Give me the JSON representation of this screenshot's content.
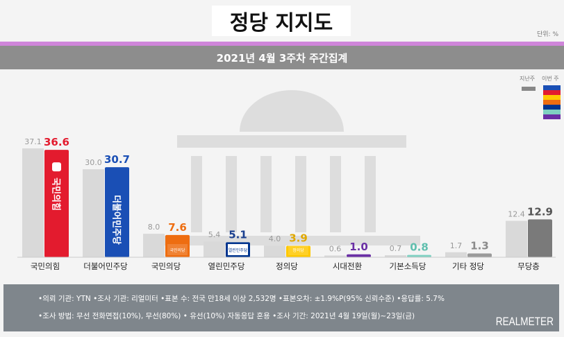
{
  "title": "정당 지지도",
  "unit": "단위: %",
  "subtitle": "2021년 4월 3주차 주간집계",
  "legend": {
    "prev": "지난주",
    "current": "이번 주",
    "current_colors": [
      "#1a4fb5",
      "#e31b2e",
      "#ffc800",
      "#ee6d10",
      "#00358f",
      "#7fd1c2",
      "#6a2fa5"
    ],
    "prev_color": "#888888"
  },
  "chart_data": {
    "type": "bar",
    "title": "정당 지지도",
    "subtitle": "2021년 4월 3주차 주간집계",
    "ylabel": "단위: %",
    "ylim": [
      0,
      40
    ],
    "categories": [
      "국민의힘",
      "더불어민주당",
      "국민의당",
      "열린민주당",
      "정의당",
      "시대전환",
      "기본소득당",
      "기타 정당",
      "무당층"
    ],
    "series": [
      {
        "name": "지난주",
        "values": [
          37.1,
          30.0,
          8.0,
          5.4,
          4.0,
          0.6,
          0.7,
          1.7,
          12.4
        ],
        "color": "#d9d9d9"
      },
      {
        "name": "이번 주",
        "values": [
          36.6,
          30.7,
          7.6,
          5.1,
          3.9,
          1.0,
          0.8,
          1.3,
          12.9
        ],
        "colors": [
          "#e31b2e",
          "#1a4fb5",
          "#ee6d10",
          "#00358f",
          "#ffc800",
          "#6a2fa5",
          "#7fd1c2",
          "#9a9a9a",
          "#7a7a7a"
        ],
        "label_colors": [
          "#e31b2e",
          "#1a4fb5",
          "#ee6d10",
          "#1a3f8f",
          "#e0a800",
          "#6a2fa5",
          "#5fbfae",
          "#8a8a8a",
          "#555555"
        ]
      }
    ],
    "bar_logos": [
      "국민의힘",
      "더불어민주당",
      "국민의당",
      "열린민주당",
      "정의당"
    ],
    "grid": false
  },
  "footer": {
    "line1": "•의뢰 기관: YTN •조사 기관: 리얼미터 •표본 수: 전국 만18세 이상 2,532명 •표본오차: ±1.9%P(95% 신뢰수준) •응답률: 5.7%",
    "line2": "•조사 방법: 무선 전화면접(10%), 무선(80%) • 유선(10%) 자동응답 혼용  •조사 기간: 2021년 4월 19일(월)~23일(금)",
    "logo": "REALMETER"
  }
}
